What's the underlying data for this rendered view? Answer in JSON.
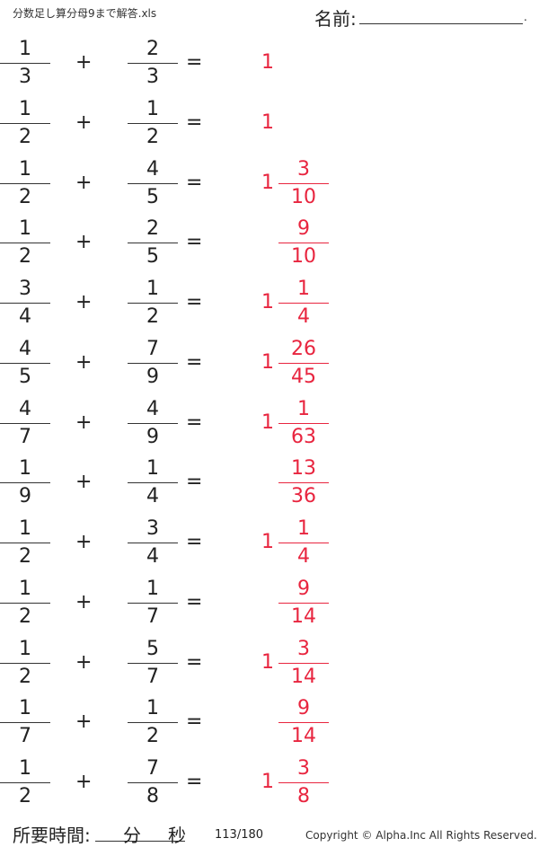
{
  "header": {
    "title": "分数足し算分母9まで解答.xls",
    "name_label": "名前:",
    "name_end": "."
  },
  "operators": {
    "plus": "+",
    "equals": "="
  },
  "colors": {
    "answer": "#e8253f",
    "text": "#222222"
  },
  "problems": [
    {
      "a": [
        "1",
        "3"
      ],
      "b": [
        "2",
        "3"
      ],
      "whole": "1",
      "ans": null
    },
    {
      "a": [
        "1",
        "2"
      ],
      "b": [
        "1",
        "2"
      ],
      "whole": "1",
      "ans": null
    },
    {
      "a": [
        "1",
        "2"
      ],
      "b": [
        "4",
        "5"
      ],
      "whole": "1",
      "ans": [
        "3",
        "10"
      ]
    },
    {
      "a": [
        "1",
        "2"
      ],
      "b": [
        "2",
        "5"
      ],
      "whole": "",
      "ans": [
        "9",
        "10"
      ]
    },
    {
      "a": [
        "3",
        "4"
      ],
      "b": [
        "1",
        "2"
      ],
      "whole": "1",
      "ans": [
        "1",
        "4"
      ]
    },
    {
      "a": [
        "4",
        "5"
      ],
      "b": [
        "7",
        "9"
      ],
      "whole": "1",
      "ans": [
        "26",
        "45"
      ]
    },
    {
      "a": [
        "4",
        "7"
      ],
      "b": [
        "4",
        "9"
      ],
      "whole": "1",
      "ans": [
        "1",
        "63"
      ]
    },
    {
      "a": [
        "1",
        "9"
      ],
      "b": [
        "1",
        "4"
      ],
      "whole": "",
      "ans": [
        "13",
        "36"
      ]
    },
    {
      "a": [
        "1",
        "2"
      ],
      "b": [
        "3",
        "4"
      ],
      "whole": "1",
      "ans": [
        "1",
        "4"
      ]
    },
    {
      "a": [
        "1",
        "2"
      ],
      "b": [
        "1",
        "7"
      ],
      "whole": "",
      "ans": [
        "9",
        "14"
      ]
    },
    {
      "a": [
        "1",
        "2"
      ],
      "b": [
        "5",
        "7"
      ],
      "whole": "1",
      "ans": [
        "3",
        "14"
      ]
    },
    {
      "a": [
        "1",
        "7"
      ],
      "b": [
        "1",
        "2"
      ],
      "whole": "",
      "ans": [
        "9",
        "14"
      ]
    },
    {
      "a": [
        "1",
        "2"
      ],
      "b": [
        "7",
        "8"
      ],
      "whole": "1",
      "ans": [
        "3",
        "8"
      ]
    }
  ],
  "footer": {
    "time_label": "所要時間:",
    "minutes": "分",
    "seconds": "秒",
    "page": "113/180",
    "copyright": "Copyright ©  Alpha.Inc All Rights Reserved."
  }
}
